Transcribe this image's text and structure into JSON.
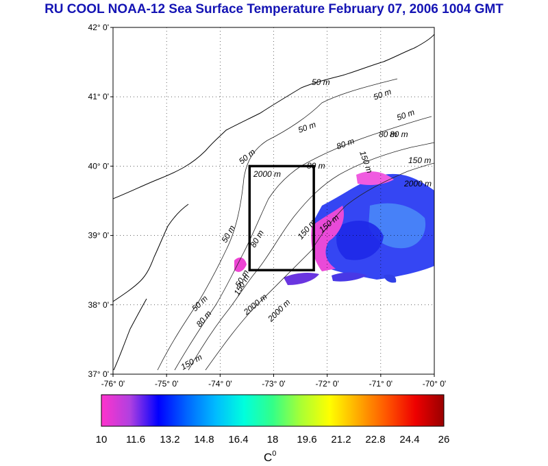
{
  "title": "RU COOL  NOAA-12 Sea Surface Temperature February 07, 2006 1004 GMT",
  "map": {
    "lat_ticks": [
      "37° 0'",
      "38° 0'",
      "39° 0'",
      "40° 0'",
      "41° 0'",
      "42° 0'"
    ],
    "lon_ticks": [
      "-76° 0'",
      "-75° 0'",
      "-74° 0'",
      "-73° 0'",
      "-72° 0'",
      "-71° 0'",
      "-70° 0'"
    ],
    "contour_labels": [
      "50 m",
      "50 m",
      "50 m",
      "80 m",
      "150 m",
      "150 m",
      "2000 m",
      "50 m",
      "80 m",
      "150 m",
      "80 m",
      "150 m",
      "2000 m",
      "50 m",
      "80 m",
      "50 m",
      "80 m",
      "150 m",
      "2000 m",
      "50 m",
      "50 m",
      "80 m",
      "2000 m",
      "150 m"
    ],
    "study_box": {
      "lon_min": -73.45,
      "lon_max": -72.25,
      "lat_min": 38.5,
      "lat_max": 40.0
    }
  },
  "colorbar": {
    "ticks": [
      "10",
      "11.6",
      "13.2",
      "14.8",
      "16.4",
      "18",
      "19.6",
      "21.2",
      "22.8",
      "24.4",
      "26"
    ],
    "unit": "C",
    "unit_superscript": "0",
    "colors": [
      "#ff33cc",
      "#b040e0",
      "#0000ff",
      "#0066ff",
      "#00bbff",
      "#00ffdd",
      "#33ff88",
      "#aaff33",
      "#ffff00",
      "#ffaa00",
      "#ff5500",
      "#ee0000",
      "#990000"
    ]
  }
}
